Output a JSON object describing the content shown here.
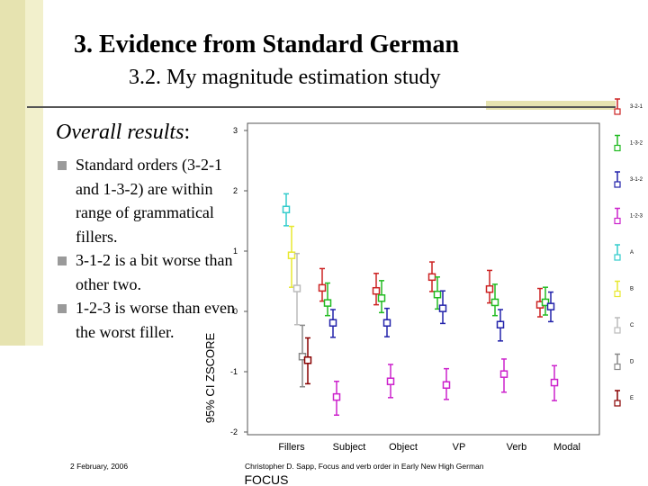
{
  "slide": {
    "title": "3. Evidence from Standard German",
    "subtitle": "3.2. My magnitude estimation study",
    "overall_label": "Overall results",
    "overall_colon": ":",
    "bullets": [
      "Standard orders (3-2-1 and 1-3-2) are within range of grammatical fillers.",
      "3-1-2 is a bit  worse than other two.",
      "1-2-3 is worse than even the worst filler."
    ],
    "footer_date": "2 February, 2006",
    "footer_credit": "Christopher D. Sapp, Focus and verb order in Early New High German"
  },
  "chart_data": {
    "type": "errorbar",
    "xlabel": "FOCUS",
    "ylabel": "95% CI ZSCORE",
    "ylim": [
      -2,
      3
    ],
    "yticks": [
      3,
      2,
      1,
      0,
      -1,
      -2
    ],
    "categories": [
      "Fillers",
      "Subject",
      "Object",
      "VP",
      "Verb",
      "Modal"
    ],
    "series": [
      {
        "name": "3-2-1",
        "color": "#cc2222",
        "points": [
          {
            "category": "Subject",
            "mean": 0.39,
            "low": 0.17,
            "high": 0.71
          },
          {
            "category": "Object",
            "mean": 0.34,
            "low": 0.11,
            "high": 0.63
          },
          {
            "category": "VP",
            "mean": 0.57,
            "low": 0.33,
            "high": 0.82
          },
          {
            "category": "Verb",
            "mean": 0.37,
            "low": 0.14,
            "high": 0.68
          },
          {
            "category": "Modal",
            "mean": 0.11,
            "low": -0.09,
            "high": 0.38
          }
        ]
      },
      {
        "name": "1-3-2",
        "color": "#22bb22",
        "points": [
          {
            "category": "Subject",
            "mean": 0.14,
            "low": -0.07,
            "high": 0.47
          },
          {
            "category": "Object",
            "mean": 0.22,
            "low": -0.02,
            "high": 0.51
          },
          {
            "category": "VP",
            "mean": 0.28,
            "low": 0.04,
            "high": 0.57
          },
          {
            "category": "Verb",
            "mean": 0.15,
            "low": -0.07,
            "high": 0.45
          },
          {
            "category": "Modal",
            "mean": 0.15,
            "low": -0.06,
            "high": 0.4
          }
        ]
      },
      {
        "name": "3-1-2",
        "color": "#2222aa",
        "points": [
          {
            "category": "Subject",
            "mean": -0.19,
            "low": -0.43,
            "high": 0.03
          },
          {
            "category": "Object",
            "mean": -0.19,
            "low": -0.42,
            "high": 0.05
          },
          {
            "category": "VP",
            "mean": 0.05,
            "low": -0.2,
            "high": 0.34
          },
          {
            "category": "Verb",
            "mean": -0.22,
            "low": -0.49,
            "high": 0.03
          },
          {
            "category": "Modal",
            "mean": 0.08,
            "low": -0.17,
            "high": 0.32
          }
        ]
      },
      {
        "name": "1-2-3",
        "color": "#cc22cc",
        "points": [
          {
            "category": "Subject",
            "mean": -1.42,
            "low": -1.72,
            "high": -1.16
          },
          {
            "category": "Object",
            "mean": -1.16,
            "low": -1.43,
            "high": -0.88
          },
          {
            "category": "VP",
            "mean": -1.22,
            "low": -1.46,
            "high": -0.95
          },
          {
            "category": "Verb",
            "mean": -1.04,
            "low": -1.34,
            "high": -0.79
          },
          {
            "category": "Modal",
            "mean": -1.18,
            "low": -1.48,
            "high": -0.9
          }
        ]
      },
      {
        "name": "A",
        "color": "#33cccc",
        "points": [
          {
            "category": "Fillers",
            "mean": 1.69,
            "low": 1.42,
            "high": 1.95
          }
        ]
      },
      {
        "name": "B",
        "color": "#e8e830",
        "points": [
          {
            "category": "Fillers",
            "mean": 0.93,
            "low": 0.4,
            "high": 1.41
          }
        ]
      },
      {
        "name": "C",
        "color": "#bbbbbb",
        "points": [
          {
            "category": "Fillers",
            "mean": 0.38,
            "low": -0.22,
            "high": 0.96
          }
        ]
      },
      {
        "name": "D",
        "color": "#888888",
        "points": [
          {
            "category": "Fillers",
            "mean": -0.75,
            "low": -1.25,
            "high": -0.23
          }
        ]
      },
      {
        "name": "E",
        "color": "#880000",
        "points": [
          {
            "category": "Fillers",
            "mean": -0.81,
            "low": -1.2,
            "high": -0.44
          }
        ]
      }
    ],
    "legend_position": "right"
  }
}
